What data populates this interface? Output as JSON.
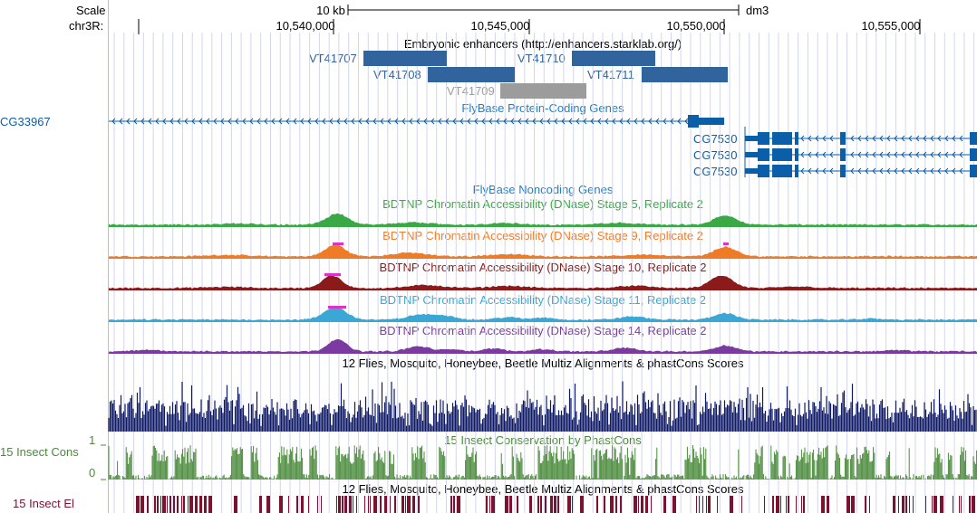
{
  "ruler": {
    "scale_label": "Scale",
    "chrom_label": "chr3R:",
    "scale_bar_label": "10 kb",
    "assembly": "dm3",
    "positions": [
      "10,540,000",
      "10,545,000",
      "10,550,000",
      "10,555,000"
    ]
  },
  "enhancers": {
    "title": "Embryonic enhancers (http://enhancers.starklab.org/)",
    "items": [
      {
        "name": "VT41707",
        "color": "#31639c"
      },
      {
        "name": "VT41708",
        "color": "#31639c"
      },
      {
        "name": "VT41709",
        "color": "#9c9c9c"
      },
      {
        "name": "VT41710",
        "color": "#31639c"
      },
      {
        "name": "VT41711",
        "color": "#31639c"
      }
    ]
  },
  "genes": {
    "title": "FlyBase Protein-Coding Genes",
    "color": "#0b5ea8",
    "items": [
      {
        "name": "CG33967",
        "strand": "-"
      },
      {
        "name": "CG7530",
        "strand": "-"
      },
      {
        "name": "CG7530",
        "strand": "-"
      },
      {
        "name": "CG7530",
        "strand": "-"
      }
    ]
  },
  "noncoding": {
    "title": "FlyBase Noncoding Genes",
    "color": "#1f7fc9"
  },
  "dnase": [
    {
      "title": "BDTNP Chromatin Accessibility (DNase) Stage 5, Replicate 2",
      "color": "#3aa845",
      "saturated": false
    },
    {
      "title": "BDTNP Chromatin Accessibility (DNase) Stage 9, Replicate 2",
      "color": "#f07b26",
      "saturated": true
    },
    {
      "title": "BDTNP Chromatin Accessibility (DNase) Stage 10, Replicate 2",
      "color": "#8b1a1a",
      "saturated": true
    },
    {
      "title": "BDTNP Chromatin Accessibility (DNase) Stage 11, Replicate 2",
      "color": "#3ba7d4",
      "saturated": true
    },
    {
      "title": "BDTNP Chromatin Accessibility (DNase) Stage 14, Replicate 2",
      "color": "#7b3aa0",
      "saturated": false
    }
  ],
  "multiz": {
    "title": "12 Flies, Mosquito, Honeybee, Beetle Multiz Alignments & phastCons Scores",
    "color": "#0f1a66"
  },
  "phastcons": {
    "side_label": "15 Insect Cons",
    "title": "15 Insect Conservation by PhastCons",
    "y_max": "1",
    "y_min": "0",
    "color": "#4a8a3a"
  },
  "elements": {
    "side_label": "15 Insect El",
    "title": "12 Flies, Mosquito, Honeybee, Beetle Multiz Alignments & phastCons Scores",
    "color": "#7a1230"
  },
  "colors": {
    "grid": "#d3d6ee",
    "saturation": "#e030c8",
    "ruler": "#000000",
    "edge": "#f1a9a9",
    "highlight": "#eef0fb"
  }
}
